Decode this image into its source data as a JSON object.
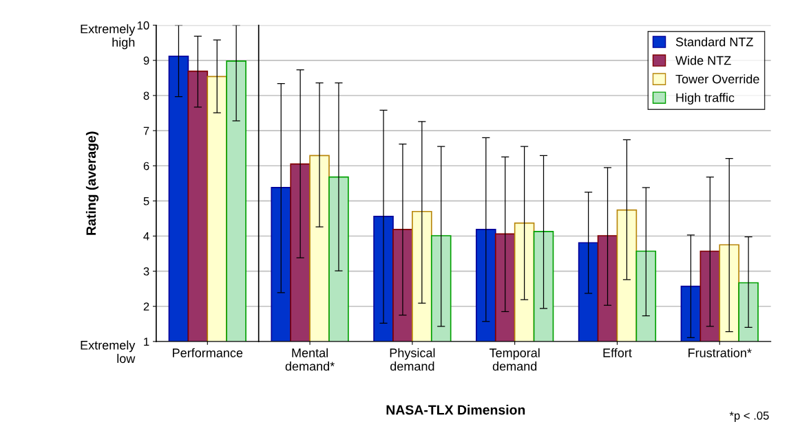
{
  "chart_data": [
    {
      "type": "bar",
      "ylabel": "Rating (average)",
      "categories": [
        "Performance"
      ],
      "series": [
        {
          "color": "#0033cc",
          "values": [
            9.12
          ],
          "errors": [
            [
              7.97,
              10.0
            ]
          ]
        },
        {
          "color": "#993366",
          "values": [
            8.69
          ],
          "errors": [
            [
              7.67,
              9.69
            ]
          ]
        },
        {
          "color": "#ffffcc",
          "values": [
            8.54
          ],
          "errors": [
            [
              7.51,
              9.58
            ]
          ]
        },
        {
          "color": "#b3e6c0",
          "values": [
            8.98
          ],
          "errors": [
            [
              7.28,
              10.0
            ]
          ]
        }
      ],
      "ylim": [
        1,
        10
      ],
      "yticks": [
        1,
        2,
        3,
        4,
        5,
        6,
        7,
        8,
        9,
        10
      ],
      "grid": "y",
      "annotations": [
        "Extremely\nhigh",
        "Extremely\nlow"
      ]
    },
    {
      "type": "bar",
      "xlabel": "NASA-TLX Dimension",
      "categories": [
        "Mental\ndemand*",
        "Physical\ndemand",
        "Temporal\ndemand",
        "Effort",
        "Frustration*"
      ],
      "series": [
        {
          "name": "Standard NTZ",
          "color": "#0033cc",
          "values": [
            5.38,
            4.56,
            4.19,
            3.81,
            2.57
          ],
          "errors": [
            [
              2.39,
              8.34
            ],
            [
              1.52,
              7.58
            ],
            [
              1.57,
              6.8
            ],
            [
              2.37,
              5.25
            ],
            [
              1.11,
              4.03
            ]
          ]
        },
        {
          "name": "Wide NTZ",
          "color": "#993366",
          "values": [
            6.05,
            4.19,
            4.06,
            4.01,
            3.57
          ],
          "errors": [
            [
              3.38,
              8.73
            ],
            [
              1.75,
              6.62
            ],
            [
              1.85,
              6.25
            ],
            [
              2.03,
              5.95
            ],
            [
              1.43,
              5.68
            ]
          ]
        },
        {
          "name": "Tower Override",
          "color": "#ffffcc",
          "values": [
            6.29,
            4.7,
            4.37,
            4.74,
            3.75
          ],
          "errors": [
            [
              4.26,
              8.36
            ],
            [
              2.09,
              7.26
            ],
            [
              2.19,
              6.55
            ],
            [
              2.76,
              6.74
            ],
            [
              1.28,
              6.21
            ]
          ]
        },
        {
          "name": "High traffic",
          "color": "#b3e6c0",
          "values": [
            5.68,
            4.01,
            4.13,
            3.57,
            2.67
          ],
          "errors": [
            [
              3.01,
              8.36
            ],
            [
              1.43,
              6.55
            ],
            [
              1.94,
              6.29
            ],
            [
              1.73,
              5.38
            ],
            [
              1.4,
              3.98
            ]
          ]
        }
      ],
      "ylim": [
        1,
        10
      ],
      "yticks": [
        1,
        2,
        3,
        4,
        5,
        6,
        7,
        8,
        9,
        10
      ],
      "grid": "y",
      "legend": "top right",
      "tick_labels": "x",
      "annotations": [
        "*p < .05"
      ]
    }
  ]
}
